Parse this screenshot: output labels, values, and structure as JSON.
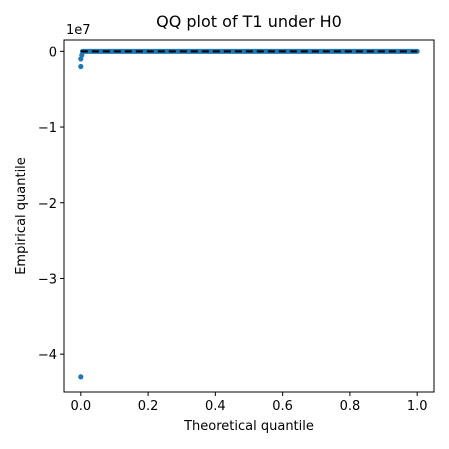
{
  "chart_data": {
    "type": "scatter",
    "title": "QQ plot of T1 under H0",
    "xlabel": "Theoretical quantile",
    "ylabel": "Empirical quantile",
    "y_offset_label": "1e7",
    "xlim": [
      -0.05,
      1.05
    ],
    "ylim": [
      -4.5,
      0.15
    ],
    "x_ticks": [
      0.0,
      0.2,
      0.4,
      0.6,
      0.8,
      1.0
    ],
    "x_tick_labels": [
      "0.0",
      "0.2",
      "0.4",
      "0.6",
      "0.8",
      "1.0"
    ],
    "y_ticks": [
      0,
      -1,
      -2,
      -3,
      -4
    ],
    "y_tick_labels": [
      "0",
      "−1",
      "−2",
      "−3",
      "−4"
    ],
    "grid": false,
    "series": [
      {
        "kind": "points",
        "color": "#1f77b4",
        "outliers": [
          {
            "x": 0.0,
            "y": -4.3
          },
          {
            "x": 0.0,
            "y": -0.2
          },
          {
            "x": 0.0,
            "y": -0.1
          },
          {
            "x": 0.003,
            "y": -0.05
          }
        ],
        "dense_band": {
          "x_start": 0.005,
          "x_end": 1.0,
          "y": 0.0
        }
      },
      {
        "kind": "reference-line",
        "style": "dashed",
        "color": "#000000",
        "x": [
          0.0,
          1.0
        ],
        "y": [
          0.0,
          0.0
        ]
      }
    ]
  }
}
